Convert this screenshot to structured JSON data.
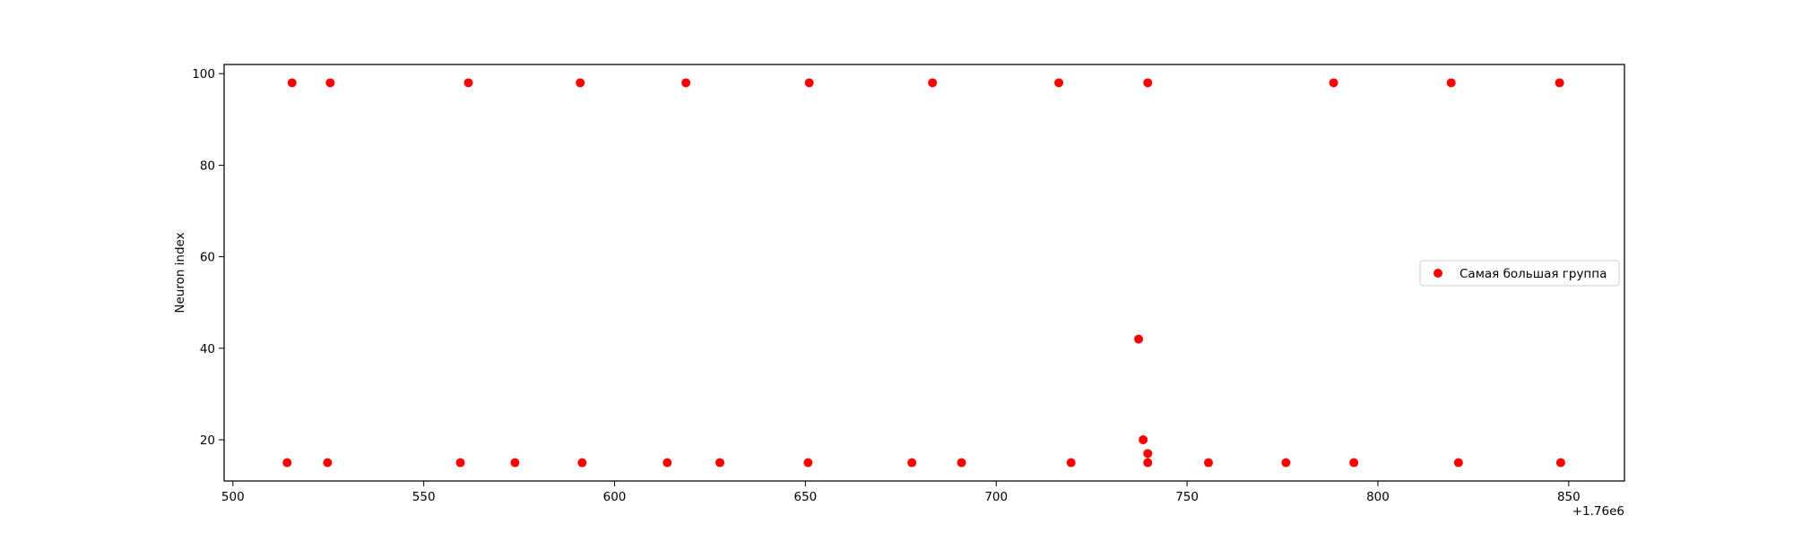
{
  "chart_data": {
    "type": "scatter",
    "title": "",
    "xlabel": "",
    "ylabel": "Neuron index",
    "x_offset_label": "+1.76e6",
    "xlim": [
      497.7,
      864.6
    ],
    "ylim": [
      11.0,
      102.0
    ],
    "x_ticks": [
      500,
      550,
      600,
      650,
      700,
      750,
      800,
      850
    ],
    "y_ticks": [
      20,
      40,
      60,
      80,
      100
    ],
    "grid": false,
    "legend": {
      "placement": "center-right"
    },
    "series": [
      {
        "name": "Самая большая группа",
        "color": "#ff0000",
        "points": [
          [
            515.5,
            98
          ],
          [
            525.5,
            98
          ],
          [
            561.7,
            98
          ],
          [
            591.0,
            98
          ],
          [
            618.7,
            98
          ],
          [
            651.0,
            98
          ],
          [
            683.3,
            98
          ],
          [
            716.4,
            98
          ],
          [
            739.7,
            98
          ],
          [
            788.4,
            98
          ],
          [
            819.2,
            98
          ],
          [
            847.6,
            98
          ],
          [
            514.2,
            15
          ],
          [
            524.8,
            15
          ],
          [
            559.6,
            15
          ],
          [
            573.9,
            15
          ],
          [
            591.5,
            15
          ],
          [
            613.8,
            15
          ],
          [
            627.6,
            15
          ],
          [
            650.7,
            15
          ],
          [
            677.9,
            15
          ],
          [
            690.9,
            15
          ],
          [
            719.6,
            15
          ],
          [
            739.7,
            15
          ],
          [
            755.6,
            15
          ],
          [
            775.9,
            15
          ],
          [
            793.7,
            15
          ],
          [
            821.1,
            15
          ],
          [
            847.9,
            15
          ],
          [
            737.3,
            42
          ],
          [
            738.5,
            20
          ],
          [
            739.7,
            17
          ]
        ]
      }
    ]
  }
}
